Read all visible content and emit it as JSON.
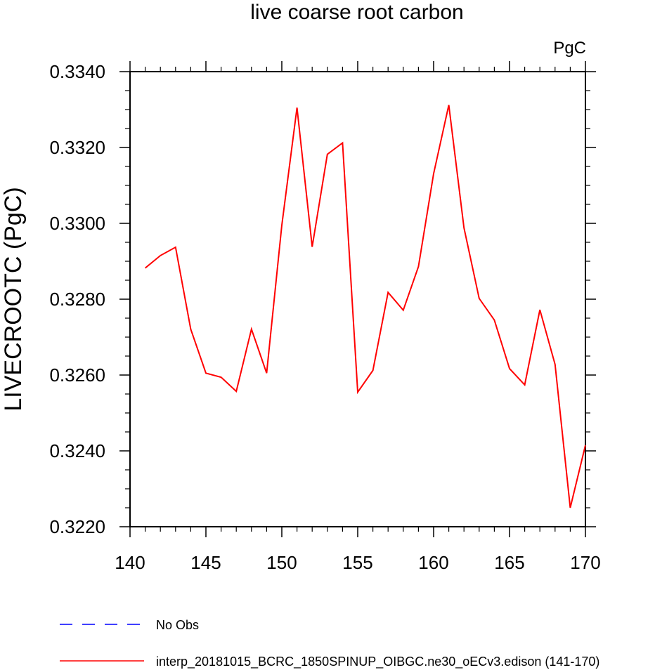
{
  "chart_data": {
    "type": "line",
    "title": "live coarse root carbon",
    "units_label": "PgC",
    "xlabel": "",
    "ylabel": "LIVECROOTC  (PgC)",
    "xlim": [
      140,
      170
    ],
    "ylim": [
      0.322,
      0.334
    ],
    "x_ticks": [
      "140",
      "145",
      "150",
      "155",
      "160",
      "165",
      "170"
    ],
    "y_ticks": [
      "0.3220",
      "0.3240",
      "0.3260",
      "0.3280",
      "0.3300",
      "0.3320",
      "0.3340"
    ],
    "x": [
      141,
      142,
      143,
      144,
      145,
      146,
      147,
      148,
      149,
      150,
      151,
      152,
      153,
      154,
      155,
      156,
      157,
      158,
      159,
      160,
      161,
      162,
      163,
      164,
      165,
      166,
      167,
      168,
      169,
      170
    ],
    "series": [
      {
        "name": "interp_20181015_BCRC_1850SPINUP_OIBGC.ne30_oECv3.edison (141-170)",
        "color": "#ff0000",
        "dash": "solid",
        "values": [
          0.32882,
          0.32915,
          0.32937,
          0.32721,
          0.32605,
          0.32594,
          0.32557,
          0.32721,
          0.32605,
          0.32995,
          0.33305,
          0.32938,
          0.33182,
          0.33212,
          0.32555,
          0.32612,
          0.32818,
          0.32771,
          0.32886,
          0.33131,
          0.33312,
          0.32988,
          0.32802,
          0.32745,
          0.32617,
          0.32574,
          0.32772,
          0.32628,
          0.3225,
          0.32415
        ]
      }
    ],
    "legend": {
      "placement": "bottom-left",
      "entries": [
        {
          "label": "No Obs",
          "color": "#0000ff",
          "dash": "dashed"
        },
        {
          "label": "interp_20181015_BCRC_1850SPINUP_OIBGC.ne30_oECv3.edison (141-170)",
          "color": "#ff0000",
          "dash": "solid"
        }
      ]
    }
  }
}
